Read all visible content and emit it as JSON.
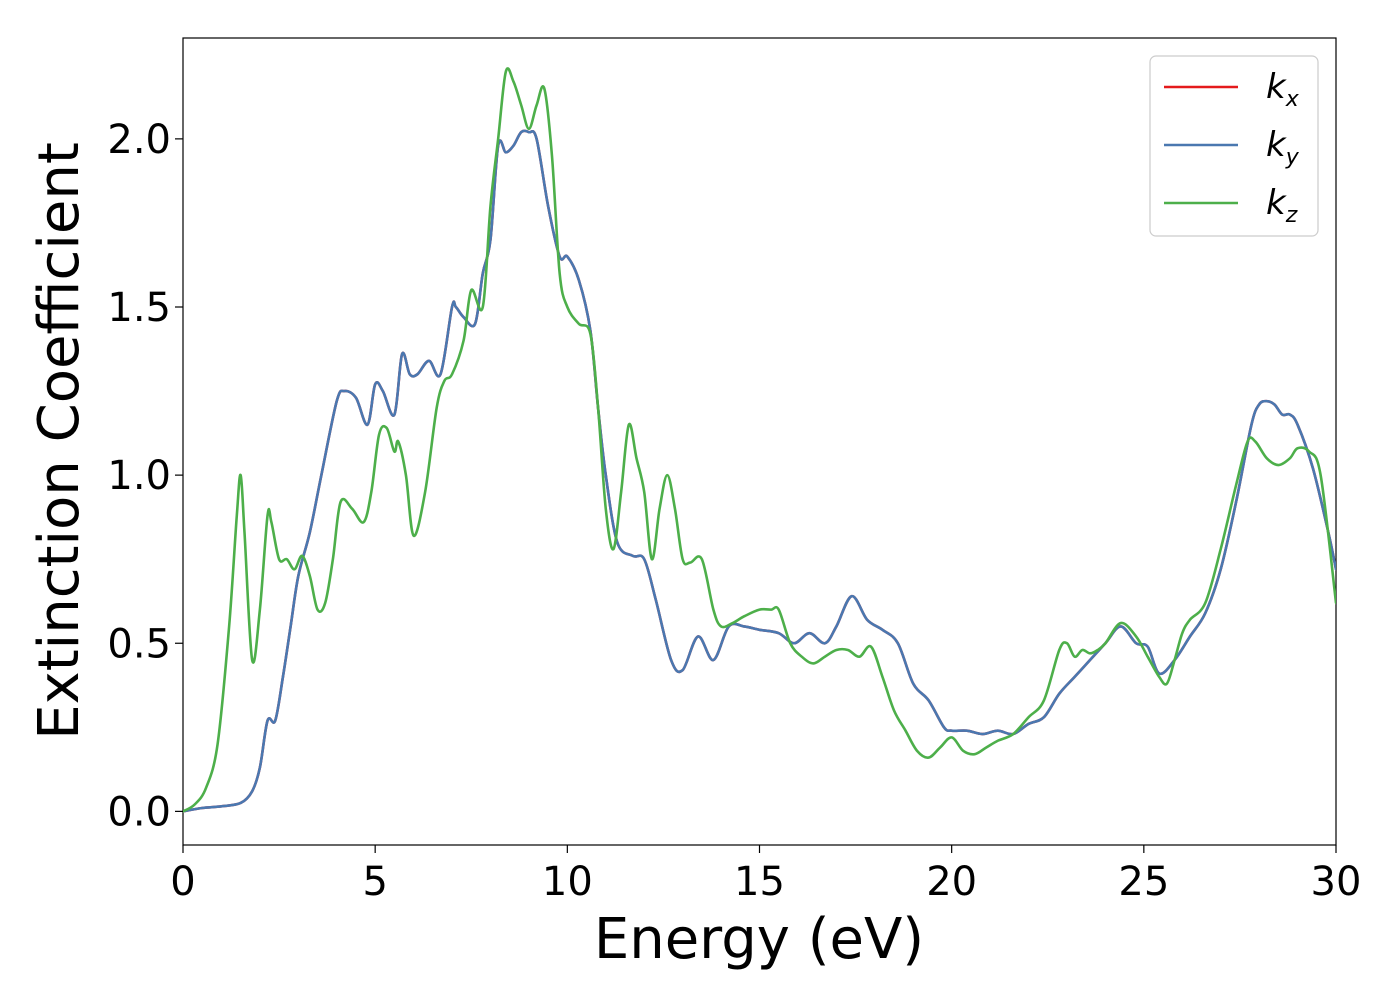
{
  "chart_data": {
    "type": "line",
    "xlabel": "Energy (eV)",
    "ylabel": "Extinction Coefficient",
    "xlim": [
      0,
      30
    ],
    "ylim": [
      -0.1,
      2.3
    ],
    "xticks": [
      0,
      5,
      10,
      15,
      20,
      25,
      30
    ],
    "xtick_labels": [
      "0",
      "5",
      "10",
      "15",
      "20",
      "25",
      "30"
    ],
    "yticks": [
      0.0,
      0.5,
      1.0,
      1.5,
      2.0
    ],
    "ytick_labels": [
      "0.0",
      "0.5",
      "1.0",
      "1.5",
      "2.0"
    ],
    "grid": false,
    "legend_position": "top-right",
    "series": [
      {
        "name": "k",
        "subscript": "x",
        "color": "#e41a1c",
        "x": [
          0,
          0.5,
          1.0,
          1.5,
          1.8,
          2.0,
          2.2,
          2.4,
          2.6,
          2.8,
          3.0,
          3.3,
          3.6,
          4.0,
          4.2,
          4.5,
          4.8,
          5.0,
          5.2,
          5.5,
          5.7,
          5.9,
          6.1,
          6.4,
          6.7,
          7.0,
          7.1,
          7.3,
          7.6,
          7.8,
          8.0,
          8.2,
          8.4,
          8.6,
          8.8,
          9.0,
          9.2,
          9.5,
          9.8,
          10.0,
          10.3,
          10.6,
          10.8,
          11.0,
          11.3,
          11.7,
          12.0,
          12.3,
          12.7,
          13.0,
          13.4,
          13.8,
          14.2,
          14.6,
          15.0,
          15.5,
          15.9,
          16.3,
          16.7,
          17.0,
          17.4,
          17.8,
          18.2,
          18.6,
          19.0,
          19.4,
          19.8,
          20.0,
          20.4,
          20.8,
          21.2,
          21.6,
          22.0,
          22.4,
          22.8,
          23.2,
          23.6,
          24.0,
          24.4,
          24.8,
          25.1,
          25.4,
          25.8,
          26.2,
          26.6,
          27.0,
          27.4,
          27.8,
          28.0,
          28.2,
          28.4,
          28.6,
          28.8,
          29.0,
          29.4,
          29.8,
          30.0
        ],
        "values": [
          0.0,
          0.01,
          0.015,
          0.025,
          0.06,
          0.13,
          0.27,
          0.27,
          0.4,
          0.55,
          0.7,
          0.83,
          1.0,
          1.22,
          1.25,
          1.23,
          1.15,
          1.27,
          1.25,
          1.18,
          1.36,
          1.3,
          1.3,
          1.34,
          1.3,
          1.5,
          1.5,
          1.47,
          1.45,
          1.6,
          1.7,
          1.98,
          1.96,
          1.98,
          2.02,
          2.02,
          2.0,
          1.8,
          1.65,
          1.65,
          1.58,
          1.43,
          1.2,
          1.0,
          0.8,
          0.76,
          0.75,
          0.63,
          0.45,
          0.42,
          0.52,
          0.45,
          0.55,
          0.55,
          0.54,
          0.53,
          0.5,
          0.53,
          0.5,
          0.55,
          0.64,
          0.57,
          0.54,
          0.5,
          0.38,
          0.33,
          0.25,
          0.24,
          0.24,
          0.23,
          0.24,
          0.23,
          0.26,
          0.28,
          0.35,
          0.4,
          0.45,
          0.5,
          0.55,
          0.5,
          0.49,
          0.41,
          0.45,
          0.52,
          0.59,
          0.72,
          0.92,
          1.15,
          1.21,
          1.22,
          1.21,
          1.18,
          1.18,
          1.15,
          1.02,
          0.83,
          0.72
        ]
      },
      {
        "name": "k",
        "subscript": "y",
        "color": "#4a78b0",
        "x": [
          0,
          0.5,
          1.0,
          1.5,
          1.8,
          2.0,
          2.2,
          2.4,
          2.6,
          2.8,
          3.0,
          3.3,
          3.6,
          4.0,
          4.2,
          4.5,
          4.8,
          5.0,
          5.2,
          5.5,
          5.7,
          5.9,
          6.1,
          6.4,
          6.7,
          7.0,
          7.1,
          7.3,
          7.6,
          7.8,
          8.0,
          8.2,
          8.4,
          8.6,
          8.8,
          9.0,
          9.2,
          9.5,
          9.8,
          10.0,
          10.3,
          10.6,
          10.8,
          11.0,
          11.3,
          11.7,
          12.0,
          12.3,
          12.7,
          13.0,
          13.4,
          13.8,
          14.2,
          14.6,
          15.0,
          15.5,
          15.9,
          16.3,
          16.7,
          17.0,
          17.4,
          17.8,
          18.2,
          18.6,
          19.0,
          19.4,
          19.8,
          20.0,
          20.4,
          20.8,
          21.2,
          21.6,
          22.0,
          22.4,
          22.8,
          23.2,
          23.6,
          24.0,
          24.4,
          24.8,
          25.1,
          25.4,
          25.8,
          26.2,
          26.6,
          27.0,
          27.4,
          27.8,
          28.0,
          28.2,
          28.4,
          28.6,
          28.8,
          29.0,
          29.4,
          29.8,
          30.0
        ],
        "values": [
          0.0,
          0.01,
          0.015,
          0.025,
          0.06,
          0.13,
          0.27,
          0.27,
          0.4,
          0.55,
          0.7,
          0.83,
          1.0,
          1.22,
          1.25,
          1.23,
          1.15,
          1.27,
          1.25,
          1.18,
          1.36,
          1.3,
          1.3,
          1.34,
          1.3,
          1.5,
          1.5,
          1.47,
          1.45,
          1.6,
          1.7,
          1.98,
          1.96,
          1.98,
          2.02,
          2.02,
          2.0,
          1.8,
          1.65,
          1.65,
          1.58,
          1.43,
          1.2,
          1.0,
          0.8,
          0.76,
          0.75,
          0.63,
          0.45,
          0.42,
          0.52,
          0.45,
          0.55,
          0.55,
          0.54,
          0.53,
          0.5,
          0.53,
          0.5,
          0.55,
          0.64,
          0.57,
          0.54,
          0.5,
          0.38,
          0.33,
          0.25,
          0.24,
          0.24,
          0.23,
          0.24,
          0.23,
          0.26,
          0.28,
          0.35,
          0.4,
          0.45,
          0.5,
          0.55,
          0.5,
          0.49,
          0.41,
          0.45,
          0.52,
          0.59,
          0.72,
          0.92,
          1.15,
          1.21,
          1.22,
          1.21,
          1.18,
          1.18,
          1.15,
          1.02,
          0.83,
          0.72
        ]
      },
      {
        "name": "k",
        "subscript": "z",
        "color": "#4daf4a",
        "x": [
          0,
          0.3,
          0.6,
          0.9,
          1.2,
          1.4,
          1.5,
          1.6,
          1.8,
          2.0,
          2.2,
          2.3,
          2.5,
          2.7,
          2.9,
          3.1,
          3.3,
          3.5,
          3.7,
          3.9,
          4.1,
          4.4,
          4.7,
          4.9,
          5.1,
          5.3,
          5.5,
          5.6,
          5.8,
          6.0,
          6.3,
          6.6,
          6.8,
          7.0,
          7.3,
          7.5,
          7.8,
          8.0,
          8.2,
          8.4,
          8.6,
          8.8,
          9.0,
          9.2,
          9.4,
          9.6,
          9.8,
          10.0,
          10.3,
          10.6,
          10.8,
          11.0,
          11.2,
          11.4,
          11.6,
          11.8,
          12.0,
          12.2,
          12.4,
          12.6,
          12.8,
          13.0,
          13.2,
          13.5,
          13.8,
          14.0,
          14.3,
          14.6,
          15.0,
          15.3,
          15.5,
          15.8,
          16.1,
          16.4,
          16.7,
          17.0,
          17.3,
          17.6,
          17.9,
          18.2,
          18.5,
          18.8,
          19.1,
          19.4,
          19.7,
          20.0,
          20.3,
          20.6,
          20.9,
          21.2,
          21.6,
          22.0,
          22.4,
          22.8,
          23.0,
          23.2,
          23.4,
          23.6,
          23.8,
          24.0,
          24.4,
          24.8,
          25.1,
          25.4,
          25.6,
          25.8,
          26.0,
          26.2,
          26.6,
          27.0,
          27.4,
          27.7,
          27.9,
          28.2,
          28.5,
          28.8,
          29.0,
          29.3,
          29.6,
          30.0
        ],
        "values": [
          0.0,
          0.02,
          0.07,
          0.2,
          0.55,
          0.88,
          1.0,
          0.83,
          0.45,
          0.6,
          0.88,
          0.86,
          0.75,
          0.75,
          0.72,
          0.76,
          0.7,
          0.6,
          0.62,
          0.75,
          0.92,
          0.9,
          0.86,
          0.95,
          1.12,
          1.14,
          1.07,
          1.1,
          1.0,
          0.82,
          0.95,
          1.2,
          1.28,
          1.3,
          1.4,
          1.55,
          1.5,
          1.8,
          2.0,
          2.2,
          2.17,
          2.1,
          2.03,
          2.1,
          2.15,
          1.95,
          1.6,
          1.5,
          1.45,
          1.42,
          1.2,
          0.9,
          0.78,
          0.95,
          1.15,
          1.05,
          0.95,
          0.75,
          0.9,
          1.0,
          0.9,
          0.75,
          0.74,
          0.75,
          0.6,
          0.55,
          0.56,
          0.58,
          0.6,
          0.6,
          0.6,
          0.5,
          0.46,
          0.44,
          0.46,
          0.48,
          0.48,
          0.46,
          0.49,
          0.4,
          0.3,
          0.24,
          0.18,
          0.16,
          0.19,
          0.22,
          0.18,
          0.17,
          0.19,
          0.21,
          0.23,
          0.28,
          0.33,
          0.48,
          0.5,
          0.46,
          0.48,
          0.47,
          0.48,
          0.5,
          0.56,
          0.52,
          0.46,
          0.4,
          0.38,
          0.45,
          0.53,
          0.57,
          0.62,
          0.78,
          0.97,
          1.1,
          1.1,
          1.05,
          1.03,
          1.05,
          1.08,
          1.07,
          1.0,
          0.62
        ]
      }
    ]
  }
}
